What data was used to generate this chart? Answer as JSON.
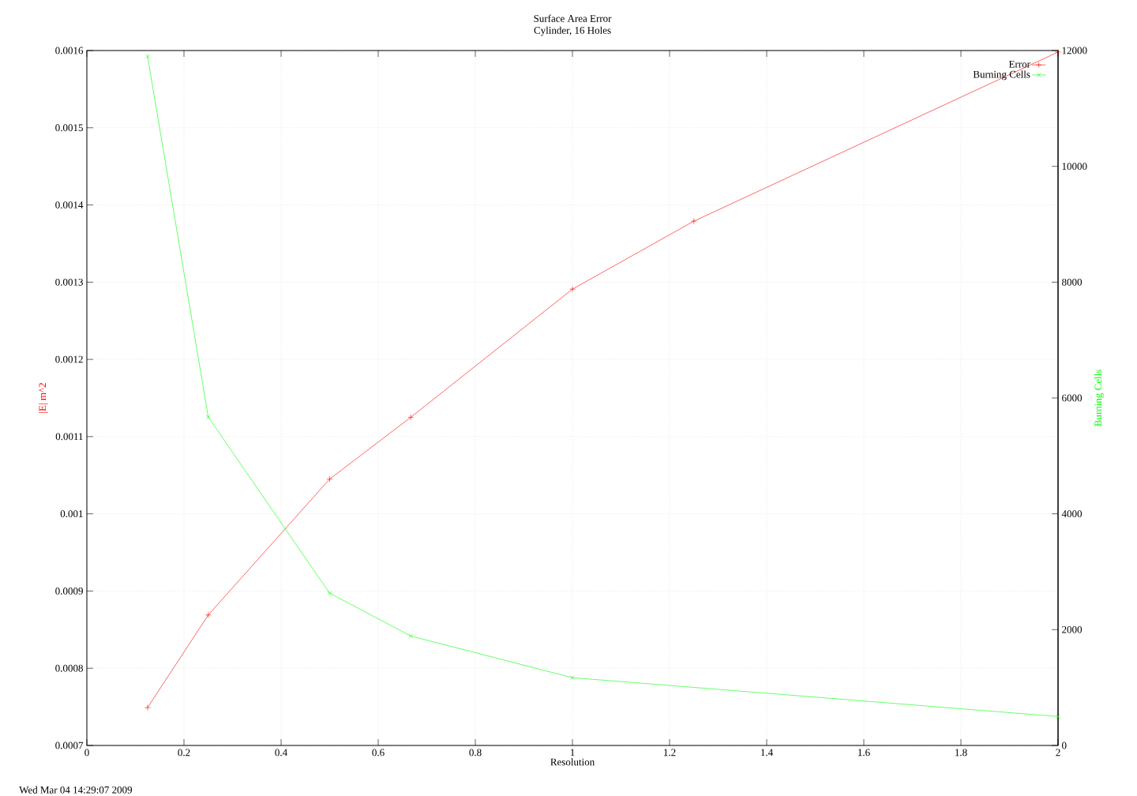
{
  "chart_data": {
    "type": "line",
    "title": "Surface Area Error",
    "subtitle": "Cylinder, 16 Holes",
    "xlabel": "Resolution",
    "ylabel": "|E| m^2",
    "y2label": "Burning Cells",
    "series": [
      {
        "name": "Error",
        "color": "#ff0000",
        "x": [
          0.125,
          0.25,
          0.5,
          0.667,
          1,
          1.25,
          2
        ],
        "values": [
          0.000749,
          0.000869,
          0.001045,
          0.001125,
          0.001291,
          0.001379,
          0.001598
        ]
      },
      {
        "name": "Burning Cells",
        "color": "#00ff00",
        "axis": "y2",
        "x": [
          0.125,
          0.25,
          0.5,
          0.667,
          1,
          2
        ],
        "values": [
          11900,
          5670,
          2630,
          1890,
          1170,
          500
        ]
      }
    ],
    "xlim": [
      0,
      2
    ],
    "xticks": [
      0,
      0.2,
      0.4,
      0.6,
      0.8,
      1,
      1.2,
      1.4,
      1.6,
      1.8,
      2
    ],
    "ylim": [
      0.0007,
      0.0016
    ],
    "yticks": [
      0.0007,
      0.0008,
      0.0009,
      0.001,
      0.0011,
      0.0012,
      0.0013,
      0.0014,
      0.0015,
      0.0016
    ],
    "y2lim": [
      0,
      12000
    ],
    "y2ticks": [
      0,
      2000,
      4000,
      6000,
      8000,
      10000,
      12000
    ],
    "grid": true,
    "legend": "top right",
    "marker": "cross",
    "annotations": [
      "Wed Mar 04 14:29:07 2009"
    ]
  }
}
